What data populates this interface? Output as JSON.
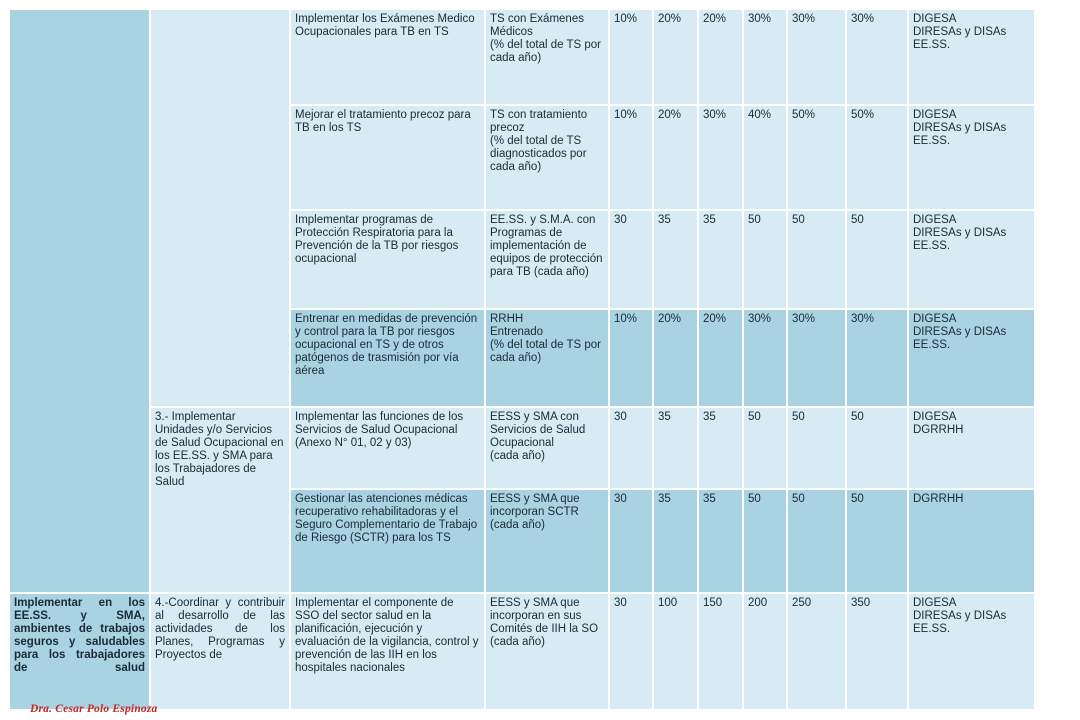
{
  "rows": [
    {
      "activity": "Implementar los Exámenes Medico Ocupacionales para TB en TS",
      "indicator": "TS con Exámenes Médicos\n(% del total de TS por cada año)",
      "values": [
        "10%",
        "20%",
        "20%",
        "30%",
        "30%",
        "30%"
      ],
      "responsible": "DIGESA\nDIRESAs y DISAs\nEE.SS."
    },
    {
      "activity": "Mejorar el tratamiento precoz para  TB en los TS",
      "indicator": "TS con tratamiento precoz\n(% del total de TS diagnosticados por cada año)",
      "values": [
        "10%",
        "20%",
        "30%",
        "40%",
        "50%",
        "50%"
      ],
      "responsible": "DIGESA\nDIRESAs y DISAs\nEE.SS."
    },
    {
      "activity": "Implementar programas de Protección Respiratoria para la Prevención de la TB por riesgos ocupacional",
      "indicator": "EE.SS. y S.M.A. con Programas de implementación de equipos de protección para TB (cada año)",
      "values": [
        "30",
        "35",
        "35",
        "50",
        "50",
        "50"
      ],
      "responsible": "DIGESA\nDIRESAs y DISAs\nEE.SS."
    },
    {
      "activity": "Entrenar en  medidas de prevención y control para la TB por riesgos ocupacional en TS y de otros patógenos de trasmisión por vía aérea",
      "indicator": "RRHH\nEntrenado\n(% del total de TS por cada año)",
      "values": [
        "10%",
        "20%",
        "20%",
        "30%",
        "30%",
        "30%"
      ],
      "responsible": "DIGESA\nDIRESAs y DISAs\nEE.SS."
    },
    {
      "activity": "Implementar las funciones de los Servicios de Salud Ocupacional (Anexo N° 01, 02 y 03)",
      "indicator": "EESS y SMA con Servicios de Salud Ocupacional\n(cada año)",
      "values": [
        "30",
        "35",
        "35",
        "50",
        "50",
        "50"
      ],
      "responsible": "DIGESA\nDGRRHH"
    },
    {
      "activity": "Gestionar las atenciones médicas recuperativo rehabilitadoras y el Seguro Complementario de Trabajo de Riesgo (SCTR) para los TS",
      "indicator": "EESS y SMA que incorporan SCTR\n(cada año)",
      "values": [
        "30",
        "35",
        "35",
        "50",
        "50",
        "50"
      ],
      "responsible": "DGRRHH"
    },
    {
      "activity": "Implementar el componente de SSO del sector salud en la planificación, ejecución y evaluación de la vigilancia, control y prevención de las IIH en los hospitales nacionales",
      "indicator": "EESS y SMA que incorporan en sus Comités de IIH la SO\n(cada año)",
      "values": [
        "30",
        "100",
        "150",
        "200",
        "250",
        "350"
      ],
      "responsible": "DIGESA\nDIRESAs y DISAs\nEE.SS."
    }
  ],
  "strategies": {
    "s3": "3.- Implementar Unidades y/o Servicios de Salud Ocupacional en los EE.SS. y SMA para los Trabajadores de Salud",
    "s4": "4.-Coordinar y contribuir al desarrollo de las actividades de los Planes, Programas y Proyectos de"
  },
  "objective": "Implementar en los EE.SS. y SMA, ambientes de trabajos seguros y saludables para los trabajadores de salud",
  "watermark": "Dra. Cesar Polo Espinoza"
}
